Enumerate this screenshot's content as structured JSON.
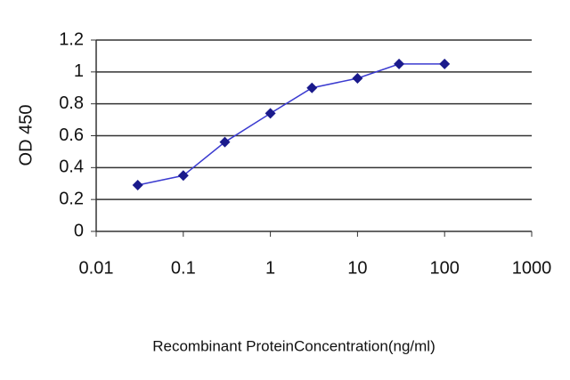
{
  "chart_data": {
    "type": "line",
    "x_label": "Recombinant ProteinConcentration(ng/ml)",
    "y_label": "OD 450",
    "x_scale": "log",
    "series": [
      {
        "color": "#1a1a8c",
        "x": [
          0.03,
          0.1,
          0.3,
          1,
          3,
          10,
          30,
          100
        ],
        "values": [
          0.29,
          0.35,
          0.56,
          0.74,
          0.9,
          0.96,
          1.05,
          1.05
        ]
      }
    ],
    "xlim": [
      0.01,
      1000
    ],
    "xticks": [
      0.01,
      0.1,
      1,
      10,
      100,
      1000
    ],
    "ylim": [
      0,
      1.2
    ],
    "yticks": [
      0,
      0.2,
      0.4,
      0.6,
      0.8,
      1,
      1.2
    ],
    "grid": true
  }
}
